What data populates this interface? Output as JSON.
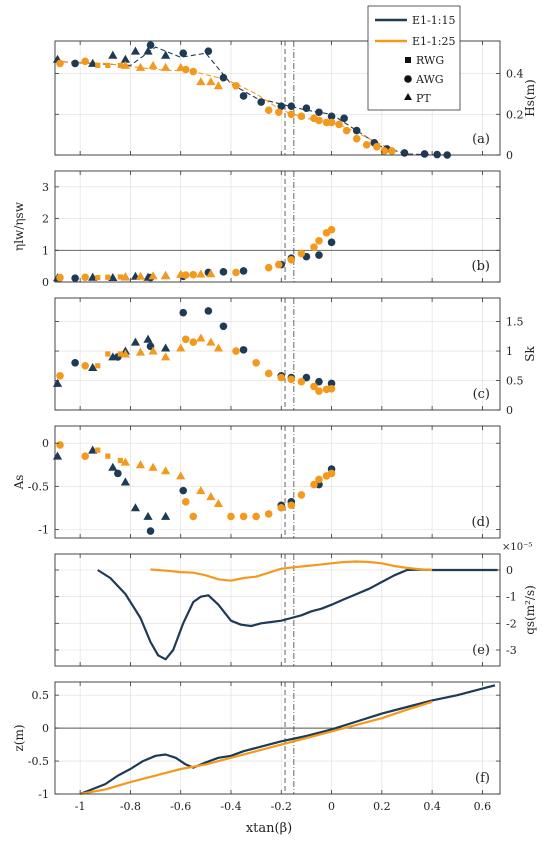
{
  "colors": {
    "e15": "#1f3a55",
    "e25": "#f39a1e",
    "grid": "#dddddd",
    "axis": "#333333"
  },
  "legend": {
    "position": "top-right",
    "lines": [
      {
        "label": "E1-1:15",
        "series": "e15"
      },
      {
        "label": "E1-1:25",
        "series": "e25"
      }
    ],
    "markers": [
      {
        "label": "RWG",
        "shape": "square"
      },
      {
        "label": "AWG",
        "shape": "circle"
      },
      {
        "label": "PT",
        "shape": "triangle"
      }
    ]
  },
  "shared_x": {
    "label": "xtan(β)",
    "range": [
      -1.1,
      0.67
    ],
    "ticks": [
      -1,
      -0.8,
      -0.6,
      -0.4,
      -0.2,
      0,
      0.2,
      0.4,
      0.6
    ],
    "tick_labels": [
      "-1",
      "-0.8",
      "-0.6",
      "-0.4",
      "-0.2",
      "0",
      "0.2",
      "0.4",
      "0.6"
    ],
    "dashed_line": -0.185,
    "dashdot_line": -0.15
  },
  "chart_data": [
    {
      "type": "scatter",
      "panel_label": "(a)",
      "ylabel": "Hs(m)",
      "ylabel_side": "right",
      "ylim": [
        0,
        0.56
      ],
      "yticks": [
        0,
        0.2,
        0.4
      ],
      "ytick_labels": [
        "0",
        "0.2",
        "0.4"
      ],
      "series": [
        {
          "series": "e15",
          "kind": "line",
          "style": "dashed",
          "x": [
            -1.1,
            -0.95,
            -0.8,
            -0.7,
            -0.6,
            -0.5,
            -0.4,
            -0.3,
            -0.2,
            -0.1,
            0.0,
            0.1,
            0.2,
            0.3,
            0.45
          ],
          "y": [
            0.46,
            0.45,
            0.44,
            0.53,
            0.48,
            0.5,
            0.35,
            0.28,
            0.25,
            0.22,
            0.2,
            0.12,
            0.04,
            0.005,
            0.0
          ]
        },
        {
          "series": "e25",
          "kind": "line",
          "style": "dashed",
          "x": [
            -1.1,
            -0.9,
            -0.7,
            -0.55,
            -0.45,
            -0.38,
            -0.3,
            -0.2,
            -0.1,
            0.0,
            0.05,
            0.15,
            0.25
          ],
          "y": [
            0.46,
            0.45,
            0.42,
            0.41,
            0.38,
            0.35,
            0.3,
            0.22,
            0.18,
            0.16,
            0.14,
            0.08,
            0.02
          ]
        },
        {
          "series": "e15",
          "marker": "triangle",
          "x": [
            -1.09,
            -0.95,
            -0.87,
            -0.82,
            -0.78,
            -0.73,
            -0.66
          ],
          "y": [
            0.47,
            0.45,
            0.49,
            0.47,
            0.51,
            0.51,
            0.49
          ]
        },
        {
          "series": "e15",
          "marker": "circle",
          "x": [
            -1.02,
            -0.72,
            -0.59,
            -0.49,
            -0.43,
            -0.35,
            -0.28,
            -0.2,
            -0.16,
            -0.1,
            -0.05,
            0.0,
            0.05,
            0.1,
            0.17,
            0.22,
            0.29,
            0.37,
            0.42,
            0.46
          ],
          "y": [
            0.45,
            0.54,
            0.5,
            0.51,
            0.38,
            0.29,
            0.26,
            0.24,
            0.24,
            0.23,
            0.21,
            0.19,
            0.18,
            0.12,
            0.06,
            0.03,
            0.01,
            0.005,
            0.002,
            0.0
          ]
        },
        {
          "series": "e25",
          "marker": "triangle",
          "x": [
            -0.82,
            -0.76,
            -0.71,
            -0.66,
            -0.6,
            -0.52,
            -0.48,
            -0.45
          ],
          "y": [
            0.44,
            0.43,
            0.44,
            0.43,
            0.43,
            0.36,
            0.36,
            0.34
          ]
        },
        {
          "series": "e25",
          "marker": "square",
          "x": [
            -0.93,
            -0.89,
            -0.84
          ],
          "y": [
            0.44,
            0.44,
            0.44
          ]
        },
        {
          "series": "e25",
          "marker": "circle",
          "x": [
            -1.08,
            -0.98,
            -0.58,
            -0.55,
            -0.38,
            -0.25,
            -0.21,
            -0.16,
            -0.12,
            -0.07,
            -0.05,
            -0.02,
            0.0,
            0.03,
            0.06,
            0.1,
            0.14,
            0.18,
            0.21,
            0.24
          ],
          "y": [
            0.45,
            0.46,
            0.42,
            0.41,
            0.34,
            0.22,
            0.21,
            0.2,
            0.19,
            0.18,
            0.17,
            0.16,
            0.16,
            0.15,
            0.12,
            0.08,
            0.05,
            0.04,
            0.02,
            0.02
          ]
        }
      ]
    },
    {
      "type": "scatter",
      "panel_label": "(b)",
      "ylabel": "ηlw/ηsw",
      "ylabel_side": "left",
      "ylim": [
        0,
        3.5
      ],
      "yticks": [
        0,
        1,
        2,
        3
      ],
      "ytick_labels": [
        "0",
        "1",
        "2",
        "3"
      ],
      "hline": 1,
      "series": [
        {
          "series": "e15",
          "marker": "circle",
          "x": [
            -1.02,
            -0.72,
            -0.59,
            -0.49,
            -0.43,
            -0.35,
            -0.2,
            -0.16,
            -0.1,
            -0.05,
            0.0
          ],
          "y": [
            0.12,
            0.14,
            0.18,
            0.3,
            0.32,
            0.35,
            0.55,
            0.75,
            0.8,
            0.85,
            1.25
          ]
        },
        {
          "series": "e15",
          "marker": "triangle",
          "x": [
            -1.09,
            -0.95,
            -0.87,
            -0.82,
            -0.78,
            -0.73,
            -0.66
          ],
          "y": [
            0.13,
            0.15,
            0.14,
            0.16,
            0.18,
            0.15,
            0.2
          ]
        },
        {
          "series": "e25",
          "marker": "square",
          "x": [
            -0.93,
            -0.89,
            -0.84
          ],
          "y": [
            0.14,
            0.15,
            0.16
          ]
        },
        {
          "series": "e25",
          "marker": "triangle",
          "x": [
            -0.82,
            -0.76,
            -0.71,
            -0.66,
            -0.6,
            -0.52,
            -0.48
          ],
          "y": [
            0.16,
            0.18,
            0.19,
            0.2,
            0.24,
            0.25,
            0.26
          ]
        },
        {
          "series": "e25",
          "marker": "circle",
          "x": [
            -1.08,
            -0.98,
            -0.58,
            -0.55,
            -0.38,
            -0.25,
            -0.21,
            -0.16,
            -0.12,
            -0.07,
            -0.05,
            -0.02,
            0.0
          ],
          "y": [
            0.14,
            0.15,
            0.22,
            0.23,
            0.3,
            0.45,
            0.55,
            0.7,
            0.9,
            1.1,
            1.3,
            1.55,
            1.65
          ]
        }
      ]
    },
    {
      "type": "scatter",
      "panel_label": "(c)",
      "ylabel": "Sk",
      "ylabel_side": "right",
      "ylim": [
        0,
        1.9
      ],
      "yticks": [
        0,
        0.5,
        1,
        1.5
      ],
      "ytick_labels": [
        "0",
        "0.5",
        "1",
        "1.5"
      ],
      "series": [
        {
          "series": "e15",
          "marker": "triangle",
          "x": [
            -1.09,
            -0.95,
            -0.87,
            -0.82,
            -0.78,
            -0.73,
            -0.66
          ],
          "y": [
            0.45,
            0.72,
            0.9,
            1.0,
            1.15,
            1.2,
            1.05
          ]
        },
        {
          "series": "e15",
          "marker": "circle",
          "x": [
            -1.02,
            -0.85,
            -0.72,
            -0.59,
            -0.49,
            -0.43,
            -0.35,
            -0.2,
            -0.16,
            -0.1,
            -0.05,
            0.0
          ],
          "y": [
            0.8,
            0.9,
            1.08,
            1.65,
            1.68,
            1.42,
            1.02,
            0.58,
            0.55,
            0.55,
            0.48,
            0.45
          ]
        },
        {
          "series": "e25",
          "marker": "square",
          "x": [
            -0.93,
            -0.89,
            -0.84
          ],
          "y": [
            0.75,
            0.95,
            0.95
          ]
        },
        {
          "series": "e25",
          "marker": "triangle",
          "x": [
            -0.82,
            -0.76,
            -0.71,
            -0.66,
            -0.6,
            -0.52,
            -0.48,
            -0.45
          ],
          "y": [
            0.95,
            0.98,
            1.0,
            0.9,
            1.05,
            1.22,
            1.15,
            1.05
          ]
        },
        {
          "series": "e25",
          "marker": "circle",
          "x": [
            -1.08,
            -0.98,
            -0.58,
            -0.55,
            -0.38,
            -0.3,
            -0.25,
            -0.2,
            -0.16,
            -0.12,
            -0.07,
            -0.05,
            -0.02,
            0.0
          ],
          "y": [
            0.58,
            0.75,
            1.2,
            1.15,
            1.0,
            0.8,
            0.62,
            0.55,
            0.52,
            0.48,
            0.4,
            0.32,
            0.35,
            0.36
          ]
        }
      ]
    },
    {
      "type": "scatter",
      "panel_label": "(d)",
      "ylabel": "As",
      "ylabel_side": "left",
      "ylim": [
        -1.1,
        0.2
      ],
      "yticks": [
        -1,
        -0.5,
        0
      ],
      "ytick_labels": [
        "-1",
        "-0.5",
        "0"
      ],
      "series": [
        {
          "series": "e15",
          "marker": "triangle",
          "x": [
            -1.09,
            -0.95,
            -0.87,
            -0.82,
            -0.78,
            -0.73,
            -0.66
          ],
          "y": [
            -0.15,
            -0.08,
            -0.28,
            -0.45,
            -0.75,
            -0.85,
            -0.85
          ]
        },
        {
          "series": "e15",
          "marker": "circle",
          "x": [
            -0.85,
            -0.72,
            -0.59,
            -0.2,
            -0.16,
            -0.05,
            0.0
          ],
          "y": [
            -0.35,
            -1.02,
            -0.55,
            -0.72,
            -0.68,
            -0.48,
            -0.3
          ]
        },
        {
          "series": "e25",
          "marker": "square",
          "x": [
            -0.93,
            -0.89,
            -0.84
          ],
          "y": [
            -0.08,
            -0.15,
            -0.2
          ]
        },
        {
          "series": "e25",
          "marker": "triangle",
          "x": [
            -0.82,
            -0.76,
            -0.71,
            -0.66,
            -0.6,
            -0.52,
            -0.48,
            -0.45
          ],
          "y": [
            -0.22,
            -0.25,
            -0.28,
            -0.32,
            -0.38,
            -0.55,
            -0.62,
            -0.7
          ]
        },
        {
          "series": "e25",
          "marker": "circle",
          "x": [
            -1.08,
            -0.98,
            -0.58,
            -0.55,
            -0.4,
            -0.35,
            -0.3,
            -0.25,
            -0.2,
            -0.16,
            -0.12,
            -0.07,
            -0.05,
            -0.02,
            0.0
          ],
          "y": [
            -0.02,
            -0.15,
            -0.68,
            -0.85,
            -0.85,
            -0.85,
            -0.85,
            -0.82,
            -0.75,
            -0.72,
            -0.6,
            -0.48,
            -0.42,
            -0.38,
            -0.35
          ]
        }
      ]
    },
    {
      "type": "line",
      "panel_label": "(e)",
      "ylabel": "qs(m²/s)",
      "ylabel_side": "right",
      "ylim": [
        -3.6,
        0.6
      ],
      "yticks": [
        -3,
        -2,
        -1,
        0
      ],
      "ytick_labels": [
        "-3",
        "-2",
        "-1",
        "0"
      ],
      "scale_note": "×10⁻⁵",
      "series": [
        {
          "series": "e15",
          "x": [
            -0.93,
            -0.88,
            -0.82,
            -0.76,
            -0.72,
            -0.69,
            -0.66,
            -0.63,
            -0.59,
            -0.55,
            -0.52,
            -0.49,
            -0.45,
            -0.4,
            -0.36,
            -0.32,
            -0.28,
            -0.24,
            -0.2,
            -0.16,
            -0.12,
            -0.08,
            -0.04,
            0.0,
            0.05,
            0.1,
            0.15,
            0.2,
            0.25,
            0.3,
            0.35,
            0.4,
            0.45,
            0.5,
            0.55,
            0.6,
            0.66
          ],
          "y": [
            0.0,
            -0.3,
            -0.9,
            -1.8,
            -2.7,
            -3.2,
            -3.35,
            -3.0,
            -2.0,
            -1.2,
            -1.0,
            -0.95,
            -1.3,
            -1.9,
            -2.05,
            -2.1,
            -2.0,
            -1.95,
            -1.9,
            -1.8,
            -1.7,
            -1.55,
            -1.45,
            -1.3,
            -1.1,
            -0.9,
            -0.7,
            -0.45,
            -0.2,
            0.0,
            0.02,
            0.0,
            0.0,
            0.0,
            0.0,
            0.0,
            0.0
          ]
        },
        {
          "series": "e25",
          "x": [
            -0.72,
            -0.65,
            -0.6,
            -0.55,
            -0.5,
            -0.45,
            -0.4,
            -0.35,
            -0.3,
            -0.25,
            -0.2,
            -0.15,
            -0.1,
            -0.05,
            0.0,
            0.05,
            0.1,
            0.15,
            0.2,
            0.25,
            0.3,
            0.35,
            0.4
          ],
          "y": [
            0.02,
            -0.03,
            -0.08,
            -0.1,
            -0.2,
            -0.35,
            -0.4,
            -0.3,
            -0.25,
            -0.1,
            0.05,
            0.1,
            0.15,
            0.2,
            0.25,
            0.3,
            0.32,
            0.3,
            0.25,
            0.15,
            0.08,
            0.03,
            0.0
          ]
        }
      ]
    },
    {
      "type": "line",
      "panel_label": "(f)",
      "ylabel": "z(m)",
      "ylabel_side": "left",
      "ylim": [
        -1.0,
        0.7
      ],
      "yticks": [
        -1,
        -0.5,
        0,
        0.5
      ],
      "ytick_labels": [
        "-1",
        "-0.5",
        "0",
        "0.5"
      ],
      "hline": 0,
      "series": [
        {
          "series": "e15",
          "x": [
            -1.0,
            -0.9,
            -0.85,
            -0.8,
            -0.75,
            -0.7,
            -0.66,
            -0.62,
            -0.58,
            -0.55,
            -0.5,
            -0.45,
            -0.4,
            -0.35,
            -0.3,
            -0.2,
            -0.1,
            0.0,
            0.1,
            0.2,
            0.3,
            0.4,
            0.5,
            0.6,
            0.65
          ],
          "y": [
            -1.0,
            -0.85,
            -0.72,
            -0.62,
            -0.5,
            -0.42,
            -0.4,
            -0.45,
            -0.55,
            -0.6,
            -0.52,
            -0.45,
            -0.42,
            -0.35,
            -0.3,
            -0.2,
            -0.12,
            -0.02,
            0.1,
            0.22,
            0.32,
            0.42,
            0.5,
            0.6,
            0.65
          ]
        },
        {
          "series": "e25",
          "x": [
            -1.0,
            -0.9,
            -0.8,
            -0.7,
            -0.6,
            -0.5,
            -0.4,
            -0.3,
            -0.2,
            -0.1,
            0.0,
            0.1,
            0.2,
            0.3,
            0.4
          ],
          "y": [
            -1.0,
            -0.93,
            -0.82,
            -0.72,
            -0.62,
            -0.55,
            -0.45,
            -0.35,
            -0.25,
            -0.15,
            -0.05,
            0.05,
            0.15,
            0.28,
            0.4
          ]
        }
      ]
    }
  ]
}
